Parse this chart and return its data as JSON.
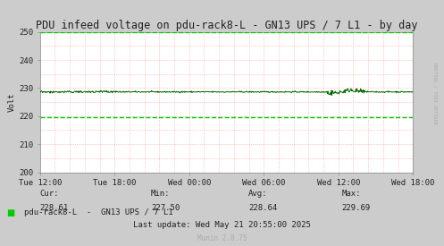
{
  "title": "PDU infeed voltage on pdu-rack8-L - GN13 UPS / 7 L1 - by day",
  "ylabel": "Volt",
  "ylim": [
    200,
    250
  ],
  "yticks": [
    200,
    210,
    220,
    230,
    240,
    250
  ],
  "xtick_labels": [
    "Tue 12:00",
    "Tue 18:00",
    "Wed 00:00",
    "Wed 06:00",
    "Wed 12:00",
    "Wed 18:00"
  ],
  "xtick_positions": [
    0.0,
    0.2,
    0.4,
    0.6,
    0.8,
    1.0
  ],
  "line_color": "#00cc00",
  "line_color_dark": "#006600",
  "bg_color": "#cccccc",
  "plot_bg_color": "#ffffff",
  "grid_color": "#ff9999",
  "dashed_line_upper": 250,
  "dashed_line_lower": 219.5,
  "avg_voltage": 228.64,
  "min_voltage": 227.5,
  "max_voltage": 229.69,
  "cur_voltage": 228.61,
  "legend_label": "pdu-rack8-L  -  GN13 UPS / 7 L1",
  "last_update": "Last update: Wed May 21 20:55:00 2025",
  "munin_version": "Munin 2.0.75",
  "rrdtool_text": "RRDTOOL / TOBI OETIKER",
  "title_fontsize": 8.5,
  "axis_fontsize": 6.5,
  "legend_fontsize": 6.5
}
